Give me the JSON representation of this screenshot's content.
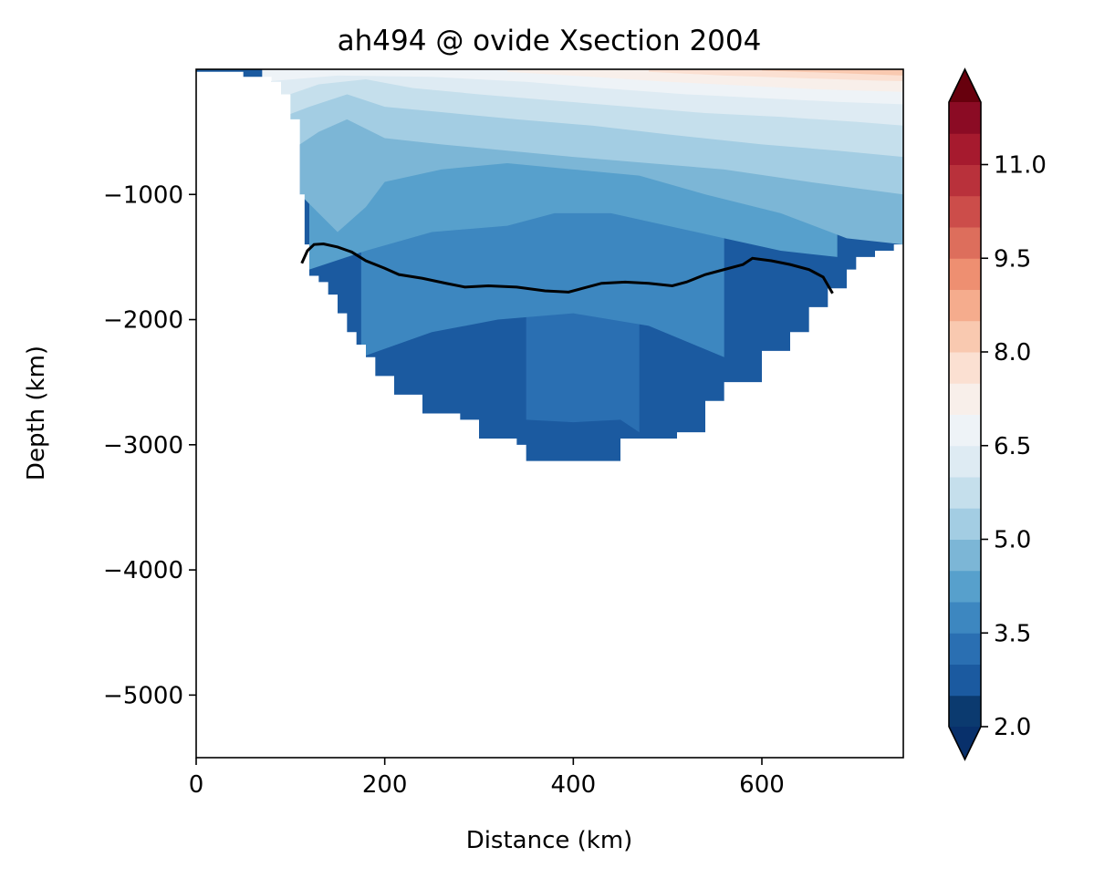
{
  "chart_data": {
    "type": "heatmap",
    "title": "ah494 @ ovide Xsection 2004",
    "xlabel": "Distance (km)",
    "ylabel": "Depth (km)",
    "xlim": [
      0,
      750
    ],
    "ylim": [
      -5500,
      0
    ],
    "x_ticks": [
      0,
      200,
      400,
      600
    ],
    "x_tick_labels": [
      "0",
      "200",
      "400",
      "600"
    ],
    "y_ticks": [
      -1000,
      -2000,
      -3000,
      -4000,
      -5000
    ],
    "y_tick_labels": [
      "−1000",
      "−2000",
      "−3000",
      "−4000",
      "−5000"
    ],
    "colormap": "RdBu_r",
    "colorbar": {
      "levels": [
        2.0,
        2.5,
        3.0,
        3.5,
        4.0,
        4.5,
        5.0,
        5.5,
        6.0,
        6.5,
        7.0,
        7.5,
        8.0,
        8.5,
        9.0,
        9.5,
        10.0,
        10.5,
        11.0,
        11.5,
        12.0
      ],
      "colors": [
        "#0b3a6f",
        "#1b5aa0",
        "#2a6fb2",
        "#3d87c0",
        "#57a0cc",
        "#7cb6d6",
        "#a3cde3",
        "#c5dfec",
        "#deebf3",
        "#eef3f7",
        "#f8efea",
        "#fbe0d2",
        "#f9c9b0",
        "#f5ac8d",
        "#ee8f71",
        "#dd6e5c",
        "#cc4d4a",
        "#b9313b",
        "#a61a2e",
        "#8b0b24"
      ],
      "extend_min_color": "#08306b",
      "extend_max_color": "#67000d",
      "tick_values": [
        2.0,
        3.5,
        5.0,
        6.5,
        8.0,
        9.5,
        11.0
      ],
      "tick_labels": [
        "2.0",
        "3.5",
        "5.0",
        "6.5",
        "8.0",
        "9.5",
        "11.0"
      ]
    },
    "bathymetry_profile": [
      [
        0,
        -20
      ],
      [
        30,
        -20
      ],
      [
        50,
        -60
      ],
      [
        80,
        -100
      ],
      [
        90,
        -200
      ],
      [
        100,
        -400
      ],
      [
        110,
        -1000
      ],
      [
        115,
        -1400
      ],
      [
        120,
        -1650
      ],
      [
        130,
        -1700
      ],
      [
        140,
        -1800
      ],
      [
        150,
        -1950
      ],
      [
        160,
        -2100
      ],
      [
        170,
        -2200
      ],
      [
        180,
        -2300
      ],
      [
        190,
        -2450
      ],
      [
        210,
        -2600
      ],
      [
        240,
        -2750
      ],
      [
        280,
        -2800
      ],
      [
        300,
        -2950
      ],
      [
        340,
        -3000
      ],
      [
        350,
        -3130
      ],
      [
        440,
        -3130
      ],
      [
        450,
        -2950
      ],
      [
        490,
        -2950
      ],
      [
        510,
        -2900
      ],
      [
        540,
        -2650
      ],
      [
        560,
        -2500
      ],
      [
        580,
        -2500
      ],
      [
        600,
        -2250
      ],
      [
        630,
        -2100
      ],
      [
        650,
        -1900
      ],
      [
        670,
        -1750
      ],
      [
        690,
        -1600
      ],
      [
        700,
        -1500
      ],
      [
        720,
        -1450
      ],
      [
        740,
        -1400
      ],
      [
        750,
        -1400
      ]
    ],
    "isotherm_depths": [
      {
        "level": 3.0,
        "points": [
          [
            350,
            -2800
          ],
          [
            400,
            -2820
          ],
          [
            450,
            -2800
          ],
          [
            470,
            -2900
          ]
        ]
      },
      {
        "level": 3.5,
        "points": [
          [
            175,
            -2300
          ],
          [
            250,
            -2100
          ],
          [
            320,
            -2000
          ],
          [
            400,
            -1950
          ],
          [
            480,
            -2050
          ],
          [
            560,
            -2300
          ]
        ]
      },
      {
        "level": 4.0,
        "points": [
          [
            120,
            -1600
          ],
          [
            180,
            -1450
          ],
          [
            250,
            -1300
          ],
          [
            330,
            -1250
          ],
          [
            380,
            -1150
          ],
          [
            440,
            -1150
          ],
          [
            500,
            -1250
          ],
          [
            560,
            -1350
          ],
          [
            620,
            -1450
          ],
          [
            680,
            -1500
          ]
        ]
      },
      {
        "level": 4.5,
        "points": [
          [
            110,
            -1000
          ],
          [
            150,
            -1300
          ],
          [
            180,
            -1100
          ],
          [
            200,
            -900
          ],
          [
            260,
            -800
          ],
          [
            330,
            -750
          ],
          [
            400,
            -800
          ],
          [
            470,
            -850
          ],
          [
            540,
            -1000
          ],
          [
            620,
            -1150
          ],
          [
            690,
            -1350
          ],
          [
            750,
            -1400
          ]
        ]
      },
      {
        "level": 5.0,
        "points": [
          [
            90,
            -700
          ],
          [
            130,
            -500
          ],
          [
            160,
            -400
          ],
          [
            200,
            -550
          ],
          [
            260,
            -600
          ],
          [
            330,
            -650
          ],
          [
            400,
            -700
          ],
          [
            480,
            -750
          ],
          [
            560,
            -800
          ],
          [
            650,
            -900
          ],
          [
            750,
            -1000
          ]
        ]
      },
      {
        "level": 5.5,
        "points": [
          [
            85,
            -400
          ],
          [
            120,
            -300
          ],
          [
            160,
            -200
          ],
          [
            200,
            -300
          ],
          [
            270,
            -350
          ],
          [
            340,
            -400
          ],
          [
            420,
            -450
          ],
          [
            500,
            -520
          ],
          [
            600,
            -600
          ],
          [
            680,
            -650
          ],
          [
            750,
            -700
          ]
        ]
      },
      {
        "level": 6.0,
        "points": [
          [
            80,
            -250
          ],
          [
            130,
            -120
          ],
          [
            180,
            -80
          ],
          [
            230,
            -150
          ],
          [
            300,
            -200
          ],
          [
            380,
            -250
          ],
          [
            460,
            -300
          ],
          [
            540,
            -350
          ],
          [
            620,
            -380
          ],
          [
            700,
            -420
          ],
          [
            750,
            -450
          ]
        ]
      },
      {
        "level": 6.5,
        "points": [
          [
            70,
            -100
          ],
          [
            150,
            -50
          ],
          [
            250,
            -60
          ],
          [
            350,
            -100
          ],
          [
            430,
            -150
          ],
          [
            520,
            -200
          ],
          [
            600,
            -230
          ],
          [
            680,
            -260
          ],
          [
            750,
            -280
          ]
        ]
      },
      {
        "level": 7.0,
        "points": [
          [
            330,
            -20
          ],
          [
            420,
            -60
          ],
          [
            500,
            -100
          ],
          [
            580,
            -130
          ],
          [
            660,
            -160
          ],
          [
            750,
            -180
          ]
        ]
      },
      {
        "level": 7.5,
        "points": [
          [
            480,
            -20
          ],
          [
            560,
            -50
          ],
          [
            640,
            -70
          ],
          [
            720,
            -90
          ],
          [
            750,
            -95
          ]
        ]
      },
      {
        "level": 8.0,
        "points": [
          [
            600,
            -10
          ],
          [
            680,
            -30
          ],
          [
            750,
            -50
          ]
        ]
      }
    ],
    "line_series": {
      "color": "#000000",
      "points": [
        [
          112,
          -1550
        ],
        [
          118,
          -1450
        ],
        [
          125,
          -1400
        ],
        [
          135,
          -1395
        ],
        [
          150,
          -1420
        ],
        [
          165,
          -1460
        ],
        [
          180,
          -1530
        ],
        [
          200,
          -1590
        ],
        [
          215,
          -1640
        ],
        [
          240,
          -1670
        ],
        [
          265,
          -1710
        ],
        [
          285,
          -1740
        ],
        [
          310,
          -1730
        ],
        [
          340,
          -1740
        ],
        [
          370,
          -1770
        ],
        [
          395,
          -1780
        ],
        [
          410,
          -1750
        ],
        [
          430,
          -1710
        ],
        [
          455,
          -1700
        ],
        [
          480,
          -1710
        ],
        [
          505,
          -1730
        ],
        [
          520,
          -1700
        ],
        [
          540,
          -1640
        ],
        [
          560,
          -1600
        ],
        [
          580,
          -1560
        ],
        [
          590,
          -1510
        ],
        [
          610,
          -1530
        ],
        [
          630,
          -1560
        ],
        [
          650,
          -1600
        ],
        [
          665,
          -1660
        ],
        [
          675,
          -1790
        ]
      ]
    }
  }
}
